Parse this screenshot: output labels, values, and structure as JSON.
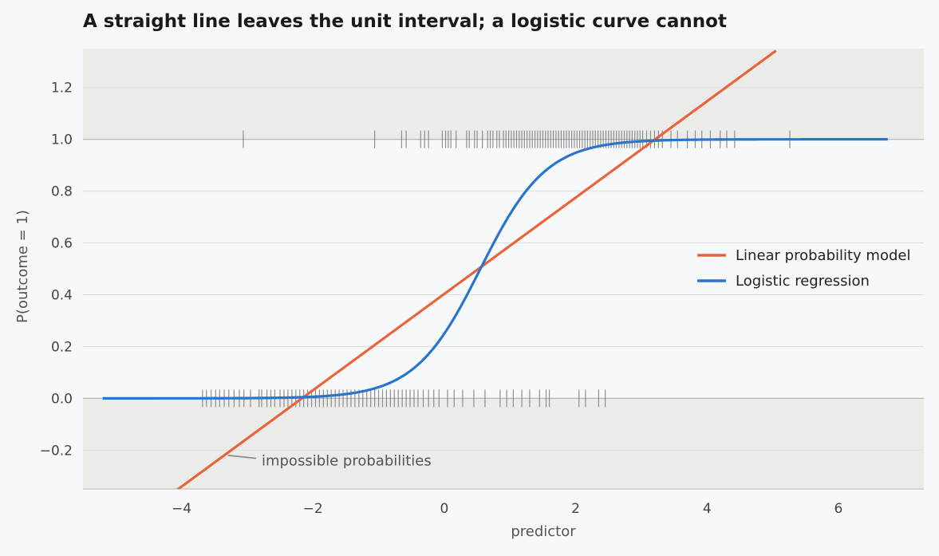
{
  "chart_data": {
    "type": "line",
    "title": "A straight line leaves the unit interval; a logistic curve cannot",
    "xlabel": "predictor",
    "ylabel": "P(outcome = 1)",
    "xlim": [
      -5.5,
      7.3
    ],
    "ylim": [
      -0.35,
      1.35
    ],
    "xticks": [
      -4,
      -2,
      0,
      2,
      4,
      6
    ],
    "xtick_labels": [
      "−4",
      "−2",
      "0",
      "2",
      "4",
      "6"
    ],
    "yticks": [
      -0.2,
      0.0,
      0.2,
      0.4,
      0.6,
      0.8,
      1.0,
      1.2
    ],
    "ytick_labels": [
      "−0.2",
      "0.0",
      "0.2",
      "0.4",
      "0.6",
      "0.8",
      "1.0",
      "1.2"
    ],
    "grid": true,
    "shaded_regions": [
      {
        "y_from": 1.0,
        "y_to": 1.35
      },
      {
        "y_from": -0.35,
        "y_to": 0.0
      }
    ],
    "legend": {
      "position": "center-right"
    },
    "series": [
      {
        "name": "Linear probability model",
        "kind": "line",
        "color": "#e8643a",
        "intercept": 0.403,
        "slope": 0.186,
        "x_range": [
          -4.15,
          5.05
        ]
      },
      {
        "name": "Logistic regression",
        "kind": "logistic",
        "color": "#2a74cc",
        "midpoint": 0.55,
        "rate": 2.0,
        "x_range": [
          -5.2,
          6.75
        ]
      }
    ],
    "rug_1": [
      -3.06,
      -1.06,
      -0.65,
      -0.58,
      -0.36,
      -0.3,
      -0.24,
      -0.03,
      0.02,
      0.06,
      0.1,
      0.18,
      0.34,
      0.38,
      0.46,
      0.5,
      0.58,
      0.66,
      0.7,
      0.74,
      0.8,
      0.84,
      0.9,
      0.94,
      0.98,
      1.02,
      1.06,
      1.1,
      1.14,
      1.18,
      1.22,
      1.26,
      1.3,
      1.34,
      1.38,
      1.42,
      1.46,
      1.5,
      1.54,
      1.58,
      1.62,
      1.66,
      1.7,
      1.74,
      1.78,
      1.82,
      1.86,
      1.9,
      1.94,
      1.98,
      2.02,
      2.06,
      2.1,
      2.14,
      2.18,
      2.22,
      2.26,
      2.3,
      2.34,
      2.38,
      2.42,
      2.46,
      2.5,
      2.54,
      2.58,
      2.62,
      2.66,
      2.7,
      2.74,
      2.78,
      2.82,
      2.86,
      2.9,
      2.94,
      2.98,
      3.02,
      3.08,
      3.14,
      3.2,
      3.26,
      3.32,
      3.45,
      3.55,
      3.7,
      3.82,
      3.92,
      4.05,
      4.2,
      4.3,
      4.42,
      5.26
    ],
    "rug_0": [
      -3.68,
      -3.62,
      -3.55,
      -3.48,
      -3.42,
      -3.35,
      -3.28,
      -3.2,
      -3.12,
      -3.05,
      -2.95,
      -2.82,
      -2.78,
      -2.7,
      -2.64,
      -2.58,
      -2.5,
      -2.44,
      -2.38,
      -2.32,
      -2.26,
      -2.2,
      -2.14,
      -2.08,
      -2.02,
      -1.96,
      -1.9,
      -1.84,
      -1.78,
      -1.72,
      -1.66,
      -1.6,
      -1.54,
      -1.48,
      -1.42,
      -1.36,
      -1.3,
      -1.24,
      -1.18,
      -1.12,
      -1.06,
      -1.0,
      -0.94,
      -0.88,
      -0.82,
      -0.76,
      -0.7,
      -0.64,
      -0.58,
      -0.52,
      -0.46,
      -0.4,
      -0.32,
      -0.24,
      -0.16,
      -0.08,
      0.05,
      0.15,
      0.28,
      0.45,
      0.62,
      0.85,
      0.95,
      1.05,
      1.18,
      1.3,
      1.45,
      1.55,
      1.6,
      2.05,
      2.15,
      2.35,
      2.45
    ],
    "annotation": {
      "text": "impossible probabilities",
      "point": {
        "x": -3.32,
        "y": -0.22
      },
      "text_at": {
        "x": -2.78,
        "y": -0.25
      }
    }
  }
}
